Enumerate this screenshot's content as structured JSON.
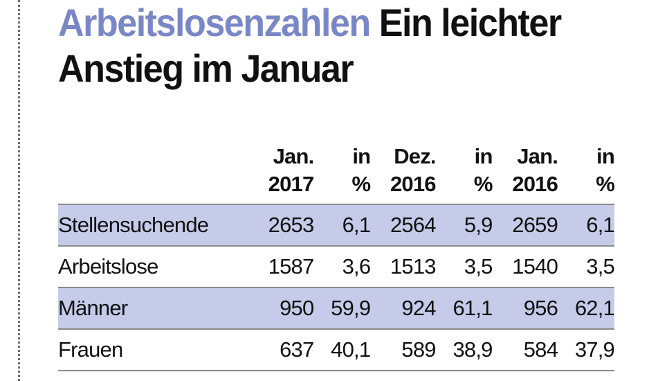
{
  "headline": {
    "kicker": "Arbeitslosenzahlen",
    "title": "Ein leichter Anstieg im Januar"
  },
  "table": {
    "headers": [
      {
        "line1": "Jan.",
        "line2": "2017"
      },
      {
        "line1": "in",
        "line2": "%"
      },
      {
        "line1": "Dez.",
        "line2": "2016"
      },
      {
        "line1": "in",
        "line2": "%"
      },
      {
        "line1": "Jan.",
        "line2": "2016"
      },
      {
        "line1": "in",
        "line2": "%"
      }
    ],
    "rows": [
      {
        "label": "Stellensuchende",
        "values": [
          "2653",
          "6,1",
          "2564",
          "5,9",
          "2659",
          "6,1"
        ]
      },
      {
        "label": "Arbeitslose",
        "values": [
          "1587",
          "3,6",
          "1513",
          "3,5",
          "1540",
          "3,5"
        ]
      },
      {
        "label": "Männer",
        "values": [
          "950",
          "59,9",
          "924",
          "61,1",
          "956",
          "62,1"
        ]
      },
      {
        "label": "Frauen",
        "values": [
          "637",
          "40,1",
          "589",
          "38,9",
          "584",
          "37,9"
        ]
      }
    ]
  },
  "colors": {
    "accent": "#7a87c7",
    "row_shade": "#c6cbe9",
    "text": "#111111"
  }
}
